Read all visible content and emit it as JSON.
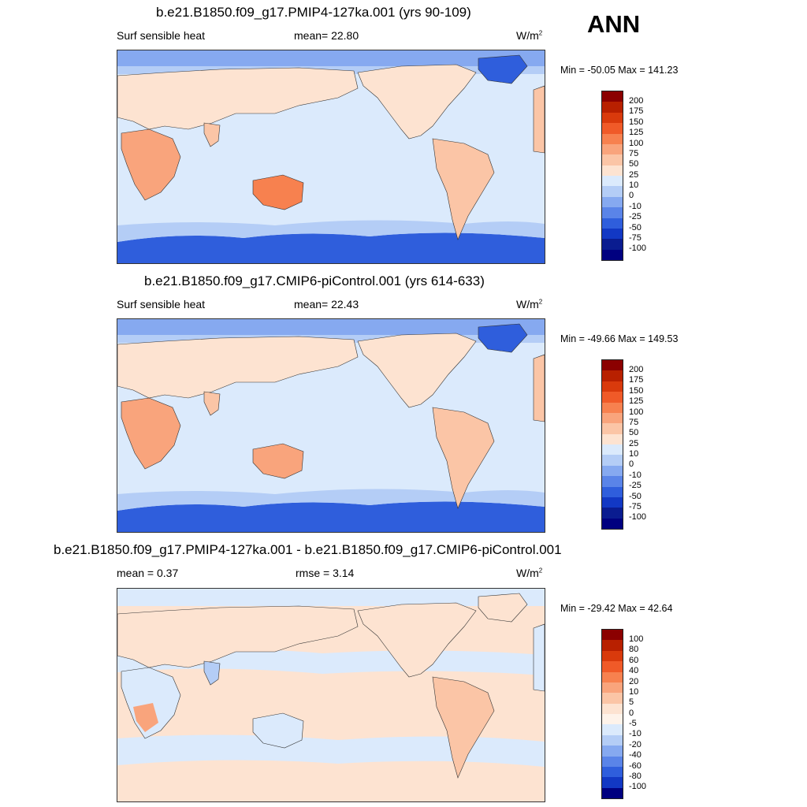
{
  "season": "ANN",
  "panels": [
    {
      "title": "b.e21.B1850.f09_g17.PMIP4-127ka.001 (yrs 90-109)",
      "left_label": "Surf sensible heat",
      "center_label": "mean=  22.80",
      "units": "W/m",
      "units_sup": "2",
      "minmax": "Min = -50.05 Max = 141.23",
      "colorbar_labels": [
        "200",
        "175",
        "150",
        "125",
        "100",
        "75",
        "50",
        "25",
        "10",
        "0",
        "-10",
        "-25",
        "-50",
        "-75",
        "-100"
      ]
    },
    {
      "title": "b.e21.B1850.f09_g17.CMIP6-piControl.001 (yrs 614-633)",
      "left_label": "Surf sensible heat",
      "center_label": "mean=  22.43",
      "units": "W/m",
      "units_sup": "2",
      "minmax": "Min = -49.66 Max = 149.53",
      "colorbar_labels": [
        "200",
        "175",
        "150",
        "125",
        "100",
        "75",
        "50",
        "25",
        "10",
        "0",
        "-10",
        "-25",
        "-50",
        "-75",
        "-100"
      ]
    },
    {
      "title": "b.e21.B1850.f09_g17.PMIP4-127ka.001 - b.e21.B1850.f09_g17.CMIP6-piControl.001",
      "left_label": "mean =   0.37",
      "center_label": "rmse =   3.14",
      "units": "W/m",
      "units_sup": "2",
      "minmax": "Min = -29.42 Max =  42.64",
      "colorbar_labels": [
        "100",
        "80",
        "60",
        "40",
        "20",
        "10",
        "5",
        "0",
        "-5",
        "-10",
        "-20",
        "-40",
        "-60",
        "-80",
        "-100"
      ]
    }
  ],
  "colors": {
    "abs_scale": [
      "#8b0000",
      "#b82000",
      "#d93a0c",
      "#f05a28",
      "#f7814f",
      "#f9a47c",
      "#fbc5a6",
      "#fde3d1",
      "#dbeafc",
      "#b4cdf6",
      "#86a9f0",
      "#5a84e8",
      "#2f5edc",
      "#1238c4",
      "#0a1c90",
      "#000080"
    ],
    "diff_scale": [
      "#8b0000",
      "#b82000",
      "#d93a0c",
      "#f05a28",
      "#f7814f",
      "#f9a47c",
      "#fbc5a6",
      "#fde3d1",
      "#fef3ea",
      "#dbeafc",
      "#b4cdf6",
      "#86a9f0",
      "#5a84e8",
      "#2f5edc",
      "#1238c4",
      "#000080"
    ],
    "ocean": "#dbeafc",
    "land_warm": "#fbc5a6",
    "cold_polar": "#3b6ae0"
  },
  "chart_data": [
    {
      "type": "heatmap",
      "title": "b.e21.B1850.f09_g17.PMIP4-127ka.001 (yrs 90-109)",
      "variable": "Surf sensible heat",
      "units": "W/m2",
      "mean": 22.8,
      "min": -50.05,
      "max": 141.23,
      "contour_levels": [
        -100,
        -75,
        -50,
        -25,
        -10,
        0,
        10,
        25,
        50,
        75,
        100,
        125,
        150,
        175,
        200
      ]
    },
    {
      "type": "heatmap",
      "title": "b.e21.B1850.f09_g17.CMIP6-piControl.001 (yrs 614-633)",
      "variable": "Surf sensible heat",
      "units": "W/m2",
      "mean": 22.43,
      "min": -49.66,
      "max": 149.53,
      "contour_levels": [
        -100,
        -75,
        -50,
        -25,
        -10,
        0,
        10,
        25,
        50,
        75,
        100,
        125,
        150,
        175,
        200
      ]
    },
    {
      "type": "heatmap",
      "title": "b.e21.B1850.f09_g17.PMIP4-127ka.001 - b.e21.B1850.f09_g17.CMIP6-piControl.001",
      "variable": "Surf sensible heat",
      "units": "W/m2",
      "mean": 0.37,
      "rmse": 3.14,
      "min": -29.42,
      "max": 42.64,
      "contour_levels": [
        -100,
        -80,
        -60,
        -40,
        -20,
        -10,
        -5,
        0,
        5,
        10,
        20,
        40,
        60,
        80,
        100
      ]
    }
  ]
}
